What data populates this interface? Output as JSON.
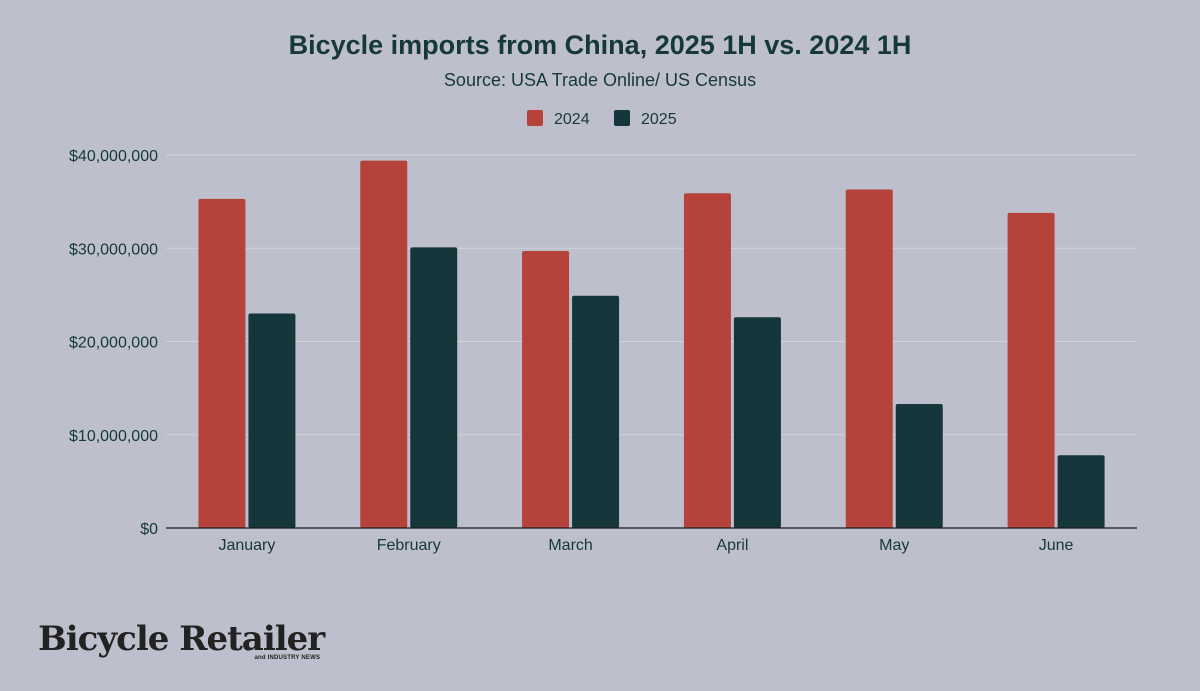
{
  "chart_data": {
    "type": "bar",
    "title": "Bicycle imports from China, 2025 1H vs. 2024 1H",
    "subtitle": "Source: USA Trade Online/ US Census",
    "xlabel": "",
    "ylabel": "",
    "categories": [
      "January",
      "February",
      "March",
      "April",
      "May",
      "June"
    ],
    "series": [
      {
        "name": "2024",
        "color": "#b5423b",
        "values": [
          35300000,
          39400000,
          29700000,
          35900000,
          36300000,
          33800000
        ]
      },
      {
        "name": "2025",
        "color": "#15363a",
        "values": [
          23000000,
          30100000,
          24900000,
          22600000,
          13300000,
          7800000
        ]
      }
    ],
    "ylim": [
      0,
      40000000
    ],
    "yticks": [
      0,
      10000000,
      20000000,
      30000000,
      40000000
    ],
    "ytick_labels": [
      "$0",
      "$10,000,000",
      "$20,000,000",
      "$30,000,000",
      "$40,000,000"
    ],
    "legend_position": "top-center",
    "grid": true
  },
  "logo": {
    "main": "Bicycle Retailer",
    "sub": "and INDUSTRY NEWS"
  },
  "colors": {
    "background": "#bdc0cc",
    "text": "#16383a",
    "grid": "#d2d4dc"
  }
}
